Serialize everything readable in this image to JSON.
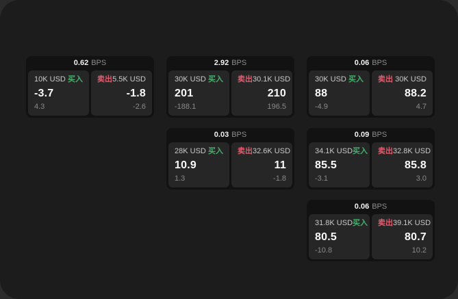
{
  "labels": {
    "bps": "BPS",
    "buy": "买入",
    "sell": "卖出"
  },
  "colors": {
    "buy": "#47ad6d",
    "sell": "#e15c6e",
    "canvas_bg": "#1c1c1c",
    "card_bg": "#121212",
    "panel_bg": "#262626"
  },
  "cards": [
    {
      "col": 0,
      "row": 0,
      "bps": "0.62",
      "buy": {
        "size": "10K USD",
        "value": "-3.7",
        "delta": "4.3"
      },
      "sell": {
        "size": "5.5K USD",
        "value": "-1.8",
        "delta": "-2.6"
      }
    },
    {
      "col": 1,
      "row": 0,
      "bps": "2.92",
      "buy": {
        "size": "30K USD",
        "value": "201",
        "delta": "-188.1"
      },
      "sell": {
        "size": "30.1K USD",
        "value": "210",
        "delta": "196.5"
      }
    },
    {
      "col": 2,
      "row": 0,
      "bps": "0.06",
      "buy": {
        "size": "30K USD",
        "value": "88",
        "delta": "-4.9"
      },
      "sell": {
        "size": "30K USD",
        "value": "88.2",
        "delta": "4.7"
      }
    },
    {
      "col": 1,
      "row": 1,
      "bps": "0.03",
      "buy": {
        "size": "28K USD",
        "value": "10.9",
        "delta": "1.3"
      },
      "sell": {
        "size": "32.6K USD",
        "value": "11",
        "delta": "-1.8"
      }
    },
    {
      "col": 2,
      "row": 1,
      "bps": "0.09",
      "buy": {
        "size": "34.1K USD",
        "value": "85.5",
        "delta": "-3.1"
      },
      "sell": {
        "size": "32.8K USD",
        "value": "85.8",
        "delta": "3.0"
      }
    },
    {
      "col": 2,
      "row": 2,
      "bps": "0.06",
      "buy": {
        "size": "31.8K USD",
        "value": "80.5",
        "delta": "-10.8"
      },
      "sell": {
        "size": "39.1K USD",
        "value": "80.7",
        "delta": "10.2"
      }
    }
  ]
}
